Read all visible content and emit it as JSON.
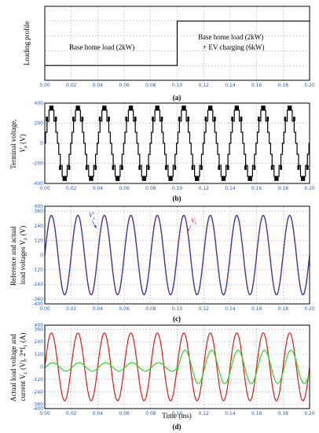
{
  "chart_data": [
    {
      "panel": "(a)",
      "type": "line",
      "title": "",
      "xlabel": "",
      "ylabel": "Loading profile",
      "xlim": [
        0,
        0.2
      ],
      "xticks": [
        "0.00",
        "0.02",
        "0.04",
        "0.06",
        "0.08",
        "0.10",
        "0.12",
        "0.14",
        "0.16",
        "0.18",
        "0.20"
      ],
      "grid": true,
      "series": [
        {
          "x": [
            0,
            0.1,
            0.1,
            0.2
          ],
          "y": [
            2,
            2,
            8,
            8
          ],
          "color": "#000000"
        }
      ],
      "annotations": [
        "Base home load (2kW)",
        "Base home load (2kW)",
        "+ EV charging (6kW)"
      ]
    },
    {
      "panel": "(b)",
      "type": "line",
      "title": "",
      "xlabel": "",
      "ylabel_line1": "Terminal voltage,",
      "ylabel_line2": "V",
      "ylabel_sub": "a",
      "ylabel_unit": " (V)",
      "xlim": [
        0,
        0.2
      ],
      "ylim": [
        -400,
        400
      ],
      "xticks": [
        "0.00",
        "0.02",
        "0.04",
        "0.06",
        "0.08",
        "0.10",
        "0.12",
        "0.14",
        "0.16",
        "0.18",
        "0.20"
      ],
      "yticks": [
        "400",
        "200",
        "0",
        "-200",
        "-400"
      ],
      "grid": true,
      "waveform": {
        "kind": "multilevel",
        "frequency_hz": 50,
        "levels": [
          0,
          110,
          220,
          330
        ],
        "color": "#000000"
      }
    },
    {
      "panel": "(c)",
      "type": "line",
      "title": "",
      "xlabel": "",
      "ylabel_line1": "Reference and actual",
      "ylabel_line2": "load voltages V",
      "ylabel_sub": "L",
      "ylabel_unit": " (V)",
      "xlim": [
        0,
        0.2
      ],
      "ylim": [
        -400,
        400
      ],
      "xticks": [
        "0.00",
        "0.02",
        "0.04",
        "0.06",
        "0.08",
        "0.10",
        "0.12",
        "0.14",
        "0.16",
        "0.18",
        "0.20"
      ],
      "yticks": [
        "400",
        "360",
        "240",
        "120",
        "0",
        "-120",
        "-240",
        "-360",
        "-400"
      ],
      "grid": true,
      "series": [
        {
          "name": "V*L",
          "kind": "sine",
          "frequency_hz": 50,
          "amplitude": 325,
          "color": "#1a3fd0"
        },
        {
          "name": "VL",
          "kind": "sine",
          "frequency_hz": 50,
          "amplitude": 325,
          "color": "#cc2020"
        }
      ],
      "labels": {
        "vref_main": "V",
        "vref_sup": "*",
        "vref_sub": "L",
        "v_main": "V",
        "v_sub": "L"
      }
    },
    {
      "panel": "(d)",
      "type": "line",
      "title": "",
      "xlabel": "Time (ms)",
      "ylabel_line1": "Actual load voltage and",
      "ylabel_line2_a": "current V",
      "ylabel_line2_b": "L",
      "ylabel_line2_c": " (V), 2*I",
      "ylabel_line2_d": "L",
      "ylabel_line2_e": " (A)",
      "xlim": [
        0,
        0.2
      ],
      "ylim": [
        -400,
        400
      ],
      "xticks": [
        "0.00",
        "0.02",
        "0.04",
        "0.06",
        "0.08",
        "0.10",
        "0.12",
        "0.14",
        "0.16",
        "0.18",
        "0.20"
      ],
      "yticks": [
        "400",
        "360",
        "240",
        "120",
        "0",
        "-120",
        "-240",
        "-360",
        "-400"
      ],
      "grid": true,
      "series": [
        {
          "name": "VL",
          "kind": "sine",
          "frequency_hz": 50,
          "amplitude": 325,
          "color": "#e01818"
        },
        {
          "name": "2*IL",
          "kind": "sine_step",
          "frequency_hz": 50,
          "amplitude_before": 40,
          "amplitude_after": 160,
          "step_time": 0.1,
          "color": "#22dd22"
        }
      ]
    }
  ]
}
